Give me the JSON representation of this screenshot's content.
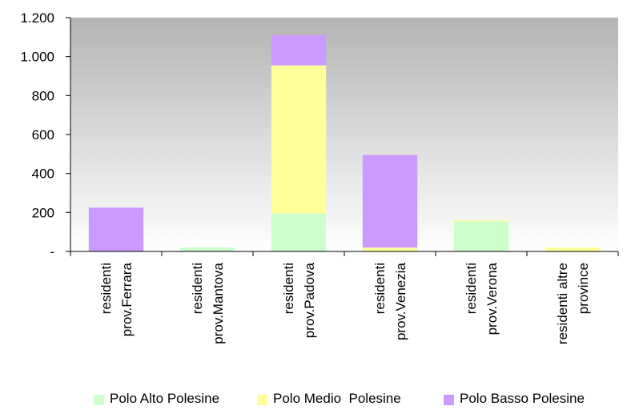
{
  "chart_data": {
    "type": "bar",
    "stacked": true,
    "categories": [
      [
        "residenti",
        "prov.Ferrara"
      ],
      [
        "residenti",
        "prov.Mantova"
      ],
      [
        "residenti",
        "prov.Padova"
      ],
      [
        "residenti",
        "prov.Venezia"
      ],
      [
        "residenti",
        "prov.Verona"
      ],
      [
        "residenti altre",
        "province"
      ]
    ],
    "series": [
      {
        "name": "Polo Alto Polesine",
        "color": "#ccffcc",
        "values": [
          0,
          20,
          195,
          0,
          155,
          0
        ]
      },
      {
        "name": "Polo Medio  Polesine",
        "color": "#ffff99",
        "values": [
          0,
          0,
          760,
          20,
          5,
          20
        ]
      },
      {
        "name": "Polo Basso Polesine",
        "color": "#cc99ff",
        "values": [
          225,
          0,
          155,
          475,
          0,
          0
        ]
      }
    ],
    "yticks": [
      "-",
      "200",
      "400",
      "600",
      "800",
      "1.000",
      "1.200"
    ],
    "ylim": [
      0,
      1200
    ],
    "grid": false,
    "legend": "bottom",
    "plot_background": "gradient gray"
  }
}
